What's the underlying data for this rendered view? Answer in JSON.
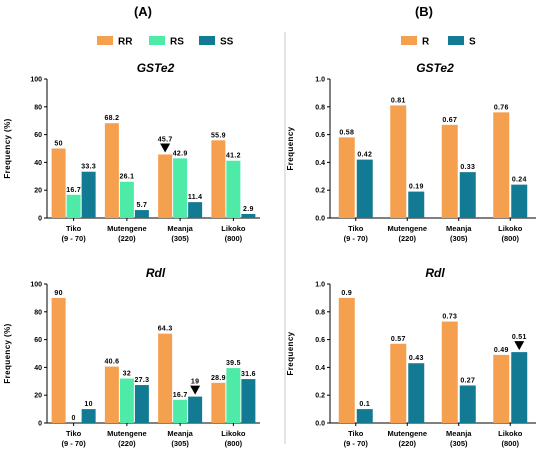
{
  "panels": [
    {
      "label": "(A)",
      "legend": [
        {
          "name": "RR",
          "color": "#F5A04E"
        },
        {
          "name": "RS",
          "color": "#4EEBA8"
        },
        {
          "name": "SS",
          "color": "#137A93"
        }
      ]
    },
    {
      "label": "(B)",
      "legend": [
        {
          "name": "R",
          "color": "#F5A04E"
        },
        {
          "name": "S",
          "color": "#137A93"
        }
      ]
    }
  ],
  "chart_data": [
    {
      "type": "bar",
      "title": "GSTe2",
      "ylabel": "Frequency (%)",
      "ylim": [
        0,
        100
      ],
      "yticks": [
        "0",
        "20",
        "40",
        "60",
        "80",
        "100"
      ],
      "categories": [
        [
          "Tiko",
          "(9 - 70)"
        ],
        [
          "Mutengene",
          "(220)"
        ],
        [
          "Meanja",
          "(305)"
        ],
        [
          "Likoko",
          "(800)"
        ]
      ],
      "series": [
        {
          "name": "RR",
          "color": "#F5A04E",
          "values": [
            50,
            68.2,
            45.7,
            55.9
          ],
          "labels": [
            "50",
            "68.2",
            "45.7",
            "55.9"
          ]
        },
        {
          "name": "RS",
          "color": "#4EEBA8",
          "values": [
            16.7,
            26.1,
            42.9,
            41.2
          ],
          "labels": [
            "16.7",
            "26.1",
            "42.9",
            "41.2"
          ]
        },
        {
          "name": "SS",
          "color": "#137A93",
          "values": [
            33.3,
            5.7,
            11.4,
            2.9
          ],
          "labels": [
            "33.3",
            "5.7",
            "11.4",
            "2.9"
          ]
        }
      ],
      "marker": {
        "category": 2,
        "series": 0
      }
    },
    {
      "type": "bar",
      "title": "GSTe2",
      "ylabel": "Frequency",
      "ylim": [
        0,
        1
      ],
      "yticks": [
        "0.0",
        "0.2",
        "0.4",
        "0.6",
        "0.8",
        "1.0"
      ],
      "categories": [
        [
          "Tiko",
          "(9 - 70)"
        ],
        [
          "Mutengene",
          "(220)"
        ],
        [
          "Meanja",
          "(305)"
        ],
        [
          "Likoko",
          "(800)"
        ]
      ],
      "series": [
        {
          "name": "R",
          "color": "#F5A04E",
          "values": [
            0.58,
            0.81,
            0.67,
            0.76
          ],
          "labels": [
            "0.58",
            "0.81",
            "0.67",
            "0.76"
          ]
        },
        {
          "name": "S",
          "color": "#137A93",
          "values": [
            0.42,
            0.19,
            0.33,
            0.24
          ],
          "labels": [
            "0.42",
            "0.19",
            "0.33",
            "0.24"
          ]
        }
      ]
    },
    {
      "type": "bar",
      "title": "Rdl",
      "ylabel": "Frequency (%)",
      "ylim": [
        0,
        100
      ],
      "yticks": [
        "0",
        "20",
        "40",
        "60",
        "80",
        "100"
      ],
      "categories": [
        [
          "Tiko",
          "(9 - 70)"
        ],
        [
          "Mutengene",
          "(220)"
        ],
        [
          "Meanja",
          "(305)"
        ],
        [
          "Likoko",
          "(800)"
        ]
      ],
      "series": [
        {
          "name": "RR",
          "color": "#F5A04E",
          "values": [
            90,
            40.6,
            64.3,
            28.9
          ],
          "labels": [
            "90",
            "40.6",
            "64.3",
            "28.9"
          ]
        },
        {
          "name": "RS",
          "color": "#4EEBA8",
          "values": [
            0,
            32,
            16.7,
            39.5
          ],
          "labels": [
            "0",
            "32",
            "16.7",
            "39.5"
          ]
        },
        {
          "name": "SS",
          "color": "#137A93",
          "values": [
            10,
            27.3,
            19,
            31.6
          ],
          "labels": [
            "10",
            "27.3",
            "19",
            "31.6"
          ]
        }
      ],
      "marker": {
        "category": 2,
        "series": 2
      }
    },
    {
      "type": "bar",
      "title": "Rdl",
      "ylabel": "Frequency",
      "ylim": [
        0,
        1
      ],
      "yticks": [
        "0.0",
        "0.2",
        "0.4",
        "0.6",
        "0.8",
        "1.0"
      ],
      "categories": [
        [
          "Tiko",
          "(9 - 70)"
        ],
        [
          "Mutengene",
          "(220)"
        ],
        [
          "Meanja",
          "(305)"
        ],
        [
          "Likoko",
          "(800)"
        ]
      ],
      "series": [
        {
          "name": "R",
          "color": "#F5A04E",
          "values": [
            0.9,
            0.57,
            0.73,
            0.49
          ],
          "labels": [
            "0.9",
            "0.57",
            "0.73",
            "0.49"
          ]
        },
        {
          "name": "S",
          "color": "#137A93",
          "values": [
            0.1,
            0.43,
            0.27,
            0.51
          ],
          "labels": [
            "0.1",
            "0.43",
            "0.27",
            "0.51"
          ]
        }
      ],
      "marker": {
        "category": 3,
        "series": 1
      }
    }
  ]
}
